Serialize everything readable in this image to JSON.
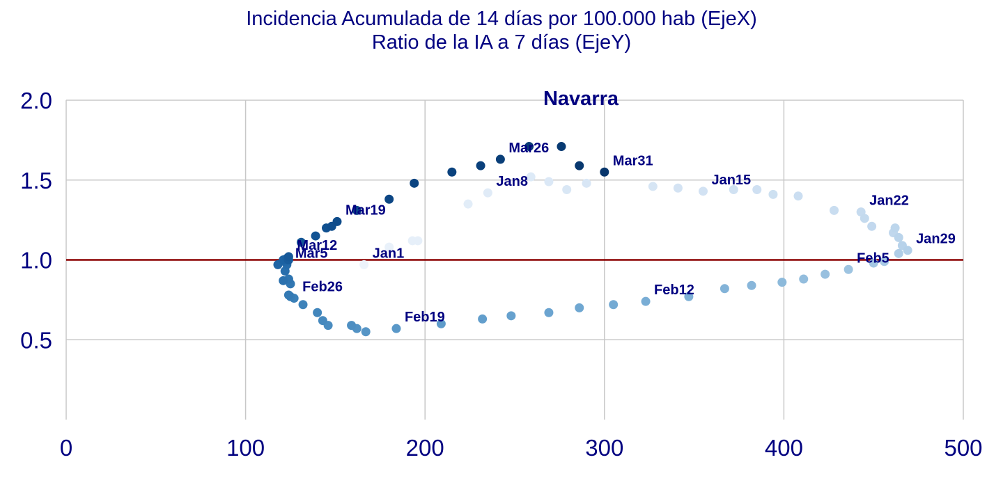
{
  "chart_data": {
    "type": "scatter",
    "title": "Incidencia Acumulada de 14 días por 100.000 hab (EjeX)",
    "subtitle": "Ratio de la IA a 7 días (EjeY)",
    "panel_title": "Navarra",
    "xlim": [
      0,
      500
    ],
    "ylim": [
      0,
      2.0
    ],
    "x_ticks": [
      "0",
      "100",
      "200",
      "300",
      "400",
      "500"
    ],
    "y_ticks": [
      "0.5",
      "1.0",
      "1.5",
      "2.0"
    ],
    "y_tick_values": [
      0.5,
      1.0,
      1.5,
      2.0
    ],
    "x_tick_values": [
      0,
      100,
      200,
      300,
      400,
      500
    ],
    "grid": true,
    "reference_line": {
      "y": 1.0,
      "color": "#8b0000"
    },
    "colors": {
      "text": "#000080",
      "grid": "#c8c8c8"
    },
    "points": [
      {
        "x": 166,
        "y": 0.97,
        "color": "#edf3fb",
        "label": "Jan1"
      },
      {
        "x": 180,
        "y": 1.08,
        "color": "#e9f1fa"
      },
      {
        "x": 193,
        "y": 1.12,
        "color": "#e6eff9"
      },
      {
        "x": 196,
        "y": 1.12,
        "color": "#e6eff9"
      },
      {
        "x": 224,
        "y": 1.35,
        "color": "#e2edf8"
      },
      {
        "x": 235,
        "y": 1.42,
        "color": "#e0ebf7",
        "label": "Jan8"
      },
      {
        "x": 259,
        "y": 1.52,
        "color": "#ddeaf7"
      },
      {
        "x": 269,
        "y": 1.49,
        "color": "#dbe8f6"
      },
      {
        "x": 279,
        "y": 1.44,
        "color": "#d9e7f5"
      },
      {
        "x": 290,
        "y": 1.48,
        "color": "#d8e6f5"
      },
      {
        "x": 327,
        "y": 1.46,
        "color": "#d6e5f4"
      },
      {
        "x": 341,
        "y": 1.45,
        "color": "#d4e3f3"
      },
      {
        "x": 355,
        "y": 1.43,
        "color": "#d2e2f3",
        "label": "Jan15"
      },
      {
        "x": 372,
        "y": 1.44,
        "color": "#d0e1f2"
      },
      {
        "x": 385,
        "y": 1.44,
        "color": "#cfe0f2"
      },
      {
        "x": 394,
        "y": 1.41,
        "color": "#cde0f1"
      },
      {
        "x": 408,
        "y": 1.4,
        "color": "#cbdef1"
      },
      {
        "x": 428,
        "y": 1.31,
        "color": "#c9ddf0"
      },
      {
        "x": 443,
        "y": 1.3,
        "color": "#c6dbef",
        "label": "Jan22"
      },
      {
        "x": 445,
        "y": 1.26,
        "color": "#c4daee"
      },
      {
        "x": 449,
        "y": 1.21,
        "color": "#c2d8ee"
      },
      {
        "x": 461,
        "y": 1.17,
        "color": "#c0d7ed"
      },
      {
        "x": 462,
        "y": 1.2,
        "color": "#bdd6ec"
      },
      {
        "x": 464,
        "y": 1.14,
        "color": "#bad4eb"
      },
      {
        "x": 466,
        "y": 1.09,
        "color": "#b7d2ea"
      },
      {
        "x": 469,
        "y": 1.06,
        "color": "#b3d0e9",
        "label": "Jan29"
      },
      {
        "x": 464,
        "y": 1.04,
        "color": "#afcde7"
      },
      {
        "x": 456,
        "y": 0.99,
        "color": "#a9cae5"
      },
      {
        "x": 450,
        "y": 0.98,
        "color": "#a4c7e3"
      },
      {
        "x": 436,
        "y": 0.94,
        "color": "#9ec4e1",
        "label": "Feb5"
      },
      {
        "x": 423,
        "y": 0.91,
        "color": "#98c0df"
      },
      {
        "x": 411,
        "y": 0.88,
        "color": "#93bddd"
      },
      {
        "x": 399,
        "y": 0.86,
        "color": "#8dbadb"
      },
      {
        "x": 382,
        "y": 0.84,
        "color": "#88b6da"
      },
      {
        "x": 367,
        "y": 0.82,
        "color": "#83b3d8"
      },
      {
        "x": 347,
        "y": 0.77,
        "color": "#7eb0d6"
      },
      {
        "x": 323,
        "y": 0.74,
        "color": "#79add5",
        "label": "Feb12"
      },
      {
        "x": 305,
        "y": 0.72,
        "color": "#74aad3"
      },
      {
        "x": 286,
        "y": 0.7,
        "color": "#6fa7d1"
      },
      {
        "x": 269,
        "y": 0.67,
        "color": "#6ba4d0"
      },
      {
        "x": 248,
        "y": 0.65,
        "color": "#66a1ce"
      },
      {
        "x": 232,
        "y": 0.63,
        "color": "#629ecc"
      },
      {
        "x": 209,
        "y": 0.6,
        "color": "#5e9bca"
      },
      {
        "x": 184,
        "y": 0.57,
        "color": "#5a98c8",
        "label": "Feb19"
      },
      {
        "x": 167,
        "y": 0.55,
        "color": "#5695c6"
      },
      {
        "x": 162,
        "y": 0.57,
        "color": "#5292c4"
      },
      {
        "x": 159,
        "y": 0.59,
        "color": "#4e8fc2"
      },
      {
        "x": 146,
        "y": 0.59,
        "color": "#4a8cc0"
      },
      {
        "x": 143,
        "y": 0.62,
        "color": "#4689be"
      },
      {
        "x": 140,
        "y": 0.67,
        "color": "#4286bc"
      },
      {
        "x": 132,
        "y": 0.72,
        "color": "#3e83ba"
      },
      {
        "x": 127,
        "y": 0.76,
        "color": "#3a80b8",
        "label": "Feb26"
      },
      {
        "x": 125,
        "y": 0.77,
        "color": "#377db6"
      },
      {
        "x": 124,
        "y": 0.78,
        "color": "#347ab4"
      },
      {
        "x": 125,
        "y": 0.85,
        "color": "#3177b2"
      },
      {
        "x": 124,
        "y": 0.88,
        "color": "#2e74b0"
      },
      {
        "x": 121,
        "y": 0.87,
        "color": "#2b71ae"
      },
      {
        "x": 122,
        "y": 0.93,
        "color": "#286eac"
      },
      {
        "x": 123,
        "y": 0.97,
        "color": "#256baa",
        "label": "Mar5"
      },
      {
        "x": 122,
        "y": 0.99,
        "color": "#2268a8"
      },
      {
        "x": 118,
        "y": 0.97,
        "color": "#1f65a5"
      },
      {
        "x": 121,
        "y": 1.0,
        "color": "#1c62a2"
      },
      {
        "x": 123,
        "y": 1.01,
        "color": "#1a5f9f"
      },
      {
        "x": 124,
        "y": 1.0,
        "color": "#185c9c"
      },
      {
        "x": 124,
        "y": 1.02,
        "color": "#165999",
        "label": "Mar12"
      },
      {
        "x": 131,
        "y": 1.11,
        "color": "#145696"
      },
      {
        "x": 139,
        "y": 1.15,
        "color": "#125393"
      },
      {
        "x": 145,
        "y": 1.2,
        "color": "#105090"
      },
      {
        "x": 148,
        "y": 1.21,
        "color": "#0f4d8d"
      },
      {
        "x": 151,
        "y": 1.24,
        "color": "#0e4b8a",
        "label": "Mar19"
      },
      {
        "x": 162,
        "y": 1.31,
        "color": "#0d4887"
      },
      {
        "x": 180,
        "y": 1.38,
        "color": "#0c4684"
      },
      {
        "x": 194,
        "y": 1.48,
        "color": "#0b4481"
      },
      {
        "x": 215,
        "y": 1.55,
        "color": "#0a427e"
      },
      {
        "x": 231,
        "y": 1.59,
        "color": "#0a407b"
      },
      {
        "x": 242,
        "y": 1.63,
        "color": "#093e78",
        "label": "Mar26"
      },
      {
        "x": 258,
        "y": 1.71,
        "color": "#093c75"
      },
      {
        "x": 276,
        "y": 1.71,
        "color": "#083a72"
      },
      {
        "x": 286,
        "y": 1.59,
        "color": "#08386f"
      },
      {
        "x": 300,
        "y": 1.55,
        "color": "#08366c",
        "label": "Mar31"
      }
    ]
  }
}
